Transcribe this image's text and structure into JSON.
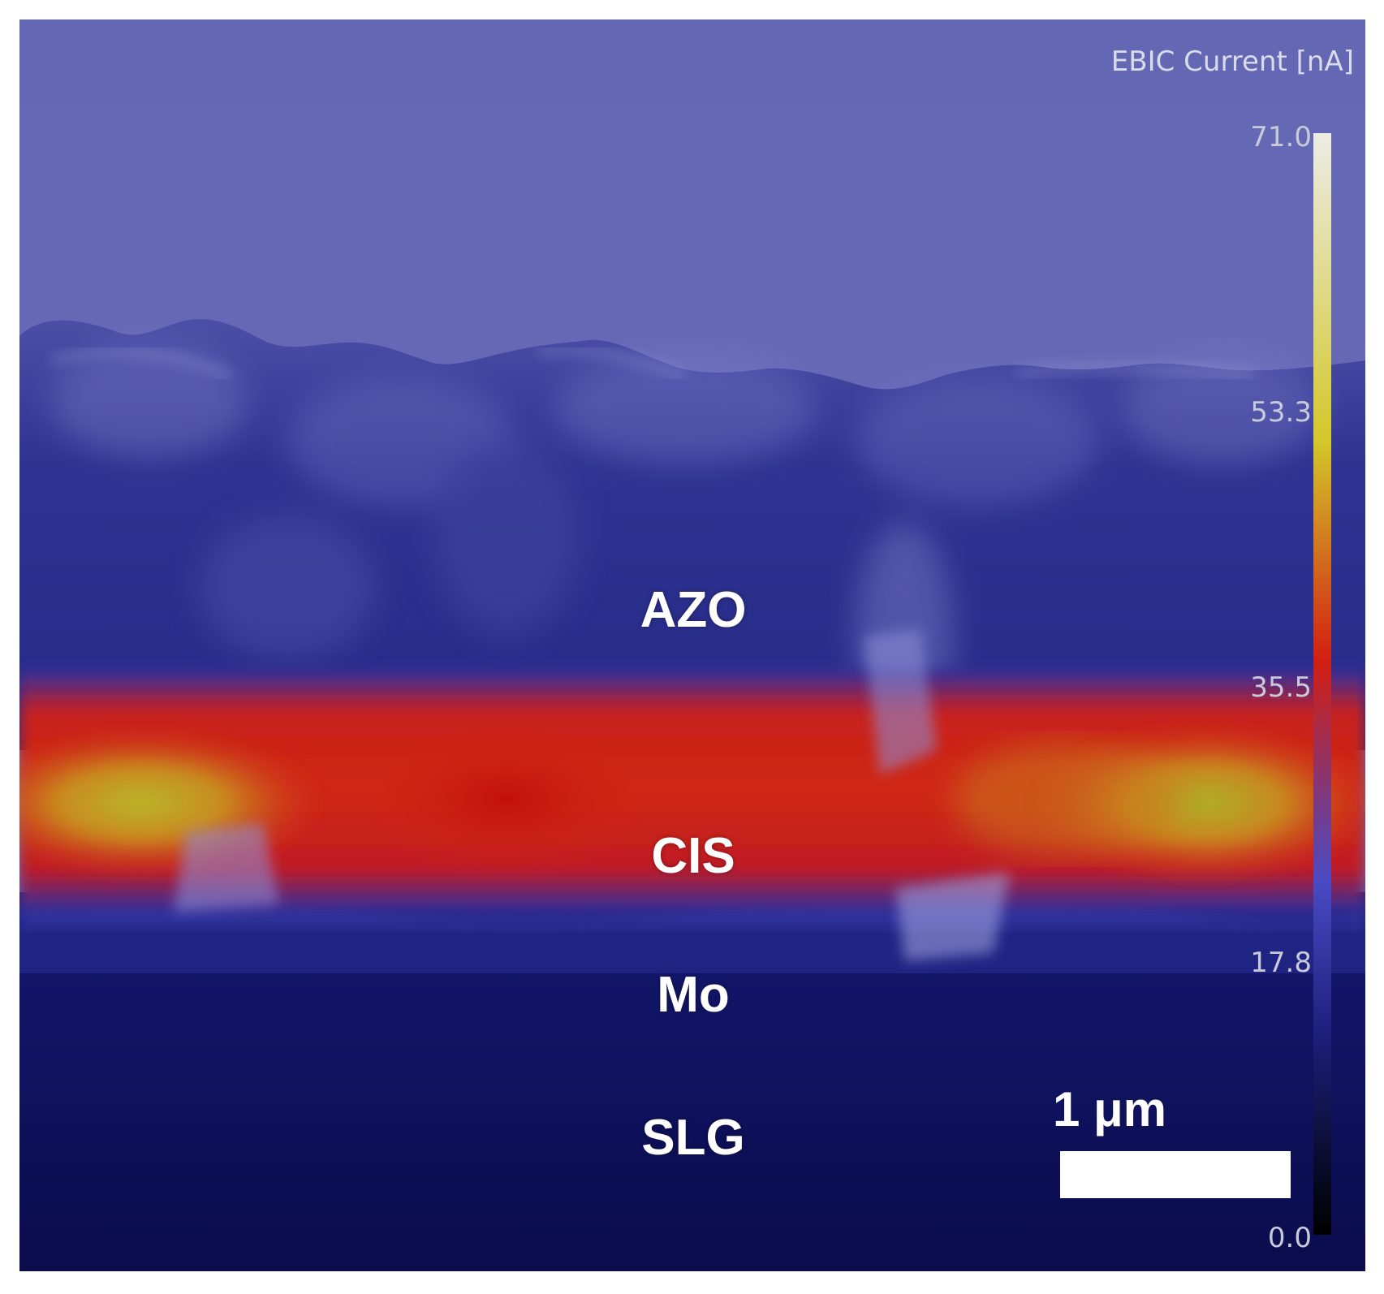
{
  "image_content": {
    "layers": {
      "azo": "AZO",
      "cis": "CIS",
      "mo": "Mo",
      "slg": "SLG"
    },
    "colorbar": {
      "title": "EBIC Current [nA]",
      "ticks": [
        "71.0",
        "53.3",
        "35.5",
        "17.8",
        "0.0"
      ],
      "min": 0.0,
      "max": 71.0,
      "colors": [
        "#000000",
        "#1c1f7a",
        "#4545c9",
        "#d21e12",
        "#d3c72a",
        "#ecece6"
      ]
    },
    "scalebar": {
      "label": "1 μm"
    },
    "palette": {
      "sky": "#6568b8",
      "azo": "#2a2f8a",
      "cis_hot": "#cf1a10",
      "cis_peak": "#b8b82a",
      "mo": "#22258a",
      "substrate": "#0d0f52"
    }
  }
}
